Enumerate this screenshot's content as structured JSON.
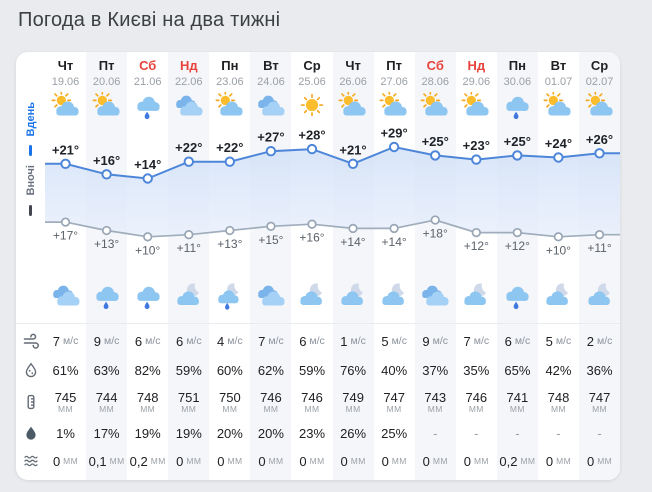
{
  "page": {
    "title": "Погода в Києві на два тижні"
  },
  "legend": {
    "day": "Вдень",
    "night": "Вночі"
  },
  "units": {
    "wind": "м/с",
    "pressure": "мм",
    "amount": "мм"
  },
  "colors": {
    "accent": "#1a73e8",
    "day_line": "#4d86d9",
    "night_line": "#9aa6b5",
    "weekend_red": "#e8443d",
    "card_bg": "#ffffff",
    "page_bg": "#e9ebee"
  },
  "row_icons": [
    "wind-icon",
    "humidity-icon",
    "pressure-icon",
    "precip-probability-icon",
    "precip-amount-icon"
  ],
  "days": [
    {
      "name": "Чт",
      "date": "19.06",
      "weekend": false,
      "day_icon": "sun-cloud",
      "night_icon": "clouds",
      "day_temp": "+21°",
      "night_temp": "+17°",
      "wind": "7",
      "humidity": "61%",
      "pressure": "745",
      "prob": "1%",
      "amount": "0"
    },
    {
      "name": "Пт",
      "date": "20.06",
      "weekend": false,
      "day_icon": "sun-cloud",
      "night_icon": "rain",
      "day_temp": "+16°",
      "night_temp": "+13°",
      "wind": "9",
      "humidity": "63%",
      "pressure": "744",
      "prob": "17%",
      "amount": "0,1"
    },
    {
      "name": "Сб",
      "date": "21.06",
      "weekend": true,
      "day_icon": "rain",
      "night_icon": "rain",
      "day_temp": "+14°",
      "night_temp": "+10°",
      "wind": "6",
      "humidity": "82%",
      "pressure": "748",
      "prob": "19%",
      "amount": "0,2"
    },
    {
      "name": "Нд",
      "date": "22.06",
      "weekend": true,
      "day_icon": "clouds",
      "night_icon": "moon-cloud",
      "day_temp": "+22°",
      "night_temp": "+11°",
      "wind": "6",
      "humidity": "59%",
      "pressure": "751",
      "prob": "19%",
      "amount": "0"
    },
    {
      "name": "Пн",
      "date": "23.06",
      "weekend": false,
      "day_icon": "sun-cloud",
      "night_icon": "moon-rain",
      "day_temp": "+22°",
      "night_temp": "+13°",
      "wind": "4",
      "humidity": "60%",
      "pressure": "750",
      "prob": "20%",
      "amount": "0"
    },
    {
      "name": "Вт",
      "date": "24.06",
      "weekend": false,
      "day_icon": "clouds",
      "night_icon": "clouds",
      "day_temp": "+27°",
      "night_temp": "+15°",
      "wind": "7",
      "humidity": "62%",
      "pressure": "746",
      "prob": "20%",
      "amount": "0"
    },
    {
      "name": "Ср",
      "date": "25.06",
      "weekend": false,
      "day_icon": "sun",
      "night_icon": "moon-cloud",
      "day_temp": "+28°",
      "night_temp": "+16°",
      "wind": "6",
      "humidity": "59%",
      "pressure": "746",
      "prob": "23%",
      "amount": "0"
    },
    {
      "name": "Чт",
      "date": "26.06",
      "weekend": false,
      "day_icon": "sun-cloud",
      "night_icon": "moon-cloud",
      "day_temp": "+21°",
      "night_temp": "+14°",
      "wind": "1",
      "humidity": "76%",
      "pressure": "749",
      "prob": "26%",
      "amount": "0"
    },
    {
      "name": "Пт",
      "date": "27.06",
      "weekend": false,
      "day_icon": "sun-cloud",
      "night_icon": "moon-cloud",
      "day_temp": "+29°",
      "night_temp": "+14°",
      "wind": "5",
      "humidity": "40%",
      "pressure": "747",
      "prob": "25%",
      "amount": "0"
    },
    {
      "name": "Сб",
      "date": "28.06",
      "weekend": true,
      "day_icon": "sun-cloud",
      "night_icon": "clouds",
      "day_temp": "+25°",
      "night_temp": "+18°",
      "wind": "9",
      "humidity": "37%",
      "pressure": "743",
      "prob": "-",
      "amount": "0"
    },
    {
      "name": "Нд",
      "date": "29.06",
      "weekend": true,
      "day_icon": "sun-cloud",
      "night_icon": "moon-cloud",
      "day_temp": "+23°",
      "night_temp": "+12°",
      "wind": "7",
      "humidity": "35%",
      "pressure": "746",
      "prob": "-",
      "amount": "0"
    },
    {
      "name": "Пн",
      "date": "30.06",
      "weekend": false,
      "day_icon": "rain",
      "night_icon": "rain",
      "day_temp": "+25°",
      "night_temp": "+12°",
      "wind": "6",
      "humidity": "65%",
      "pressure": "741",
      "prob": "-",
      "amount": "0,2"
    },
    {
      "name": "Вт",
      "date": "01.07",
      "weekend": false,
      "day_icon": "sun-cloud",
      "night_icon": "moon-cloud",
      "day_temp": "+24°",
      "night_temp": "+10°",
      "wind": "5",
      "humidity": "42%",
      "pressure": "748",
      "prob": "-",
      "amount": "0"
    },
    {
      "name": "Ср",
      "date": "02.07",
      "weekend": false,
      "day_icon": "sun-cloud",
      "night_icon": "moon-cloud",
      "day_temp": "+26°",
      "night_temp": "+11°",
      "wind": "2",
      "humidity": "36%",
      "pressure": "747",
      "prob": "-",
      "amount": "0"
    }
  ],
  "chart_data": {
    "type": "line",
    "x": [
      "19.06",
      "20.06",
      "21.06",
      "22.06",
      "23.06",
      "24.06",
      "25.06",
      "26.06",
      "27.06",
      "28.06",
      "29.06",
      "30.06",
      "01.07",
      "02.07"
    ],
    "series": [
      {
        "name": "Вдень",
        "values": [
          21,
          16,
          14,
          22,
          22,
          27,
          28,
          21,
          29,
          25,
          23,
          25,
          24,
          26
        ]
      },
      {
        "name": "Вночі",
        "values": [
          17,
          13,
          10,
          11,
          13,
          15,
          16,
          14,
          14,
          18,
          12,
          12,
          10,
          11
        ]
      }
    ],
    "ylabel": "°C",
    "legend_position": "left",
    "grid": false
  }
}
